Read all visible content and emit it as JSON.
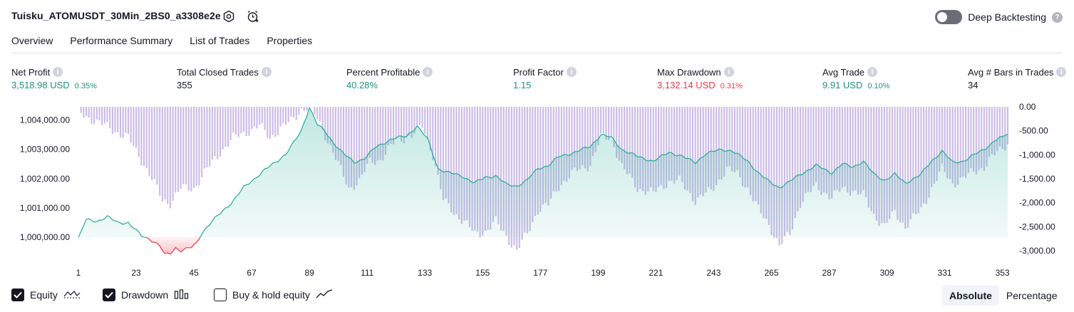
{
  "header": {
    "title": "Tuisku_ATOMUSDT_30Min_2BS0_a3308e2e",
    "settings_icon": "settings-icon",
    "alert_icon": "add-alert-icon",
    "deep_backtesting_label": "Deep Backtesting",
    "deep_backtesting_enabled": false,
    "help_glyph": "?"
  },
  "tabs": [
    {
      "label": "Overview",
      "active": true
    },
    {
      "label": "Performance Summary",
      "active": false
    },
    {
      "label": "List of Trades",
      "active": false
    },
    {
      "label": "Properties",
      "active": false
    }
  ],
  "metrics": [
    {
      "label": "Net Profit",
      "value": "3,518.98 USD",
      "pct": "0.35%",
      "tone": "positive"
    },
    {
      "label": "Total Closed Trades",
      "value": "355",
      "pct": "",
      "tone": "neutral"
    },
    {
      "label": "Percent Profitable",
      "value": "40.28%",
      "pct": "",
      "tone": "positive"
    },
    {
      "label": "Profit Factor",
      "value": "1.15",
      "pct": "",
      "tone": "positive"
    },
    {
      "label": "Max Drawdown",
      "value": "3,132.14 USD",
      "pct": "0.31%",
      "tone": "negative"
    },
    {
      "label": "Avg Trade",
      "value": "9.91 USD",
      "pct": "0.10%",
      "tone": "positive"
    },
    {
      "label": "Avg # Bars in Trades",
      "value": "34",
      "pct": "",
      "tone": "neutral"
    }
  ],
  "info_glyph": "i",
  "chart_data": {
    "type": "line",
    "x_ticks": [
      "1",
      "23",
      "45",
      "67",
      "89",
      "111",
      "133",
      "155",
      "177",
      "199",
      "221",
      "243",
      "265",
      "287",
      "309",
      "331",
      "353"
    ],
    "x_range": [
      1,
      355
    ],
    "equity_axis": {
      "ticks": [
        "1,004,000.00",
        "1,003,000.00",
        "1,002,000.00",
        "1,001,000.00",
        "1,000,000.00"
      ],
      "range": [
        999300,
        1004450
      ],
      "baseline": 1000000
    },
    "drawdown_axis": {
      "ticks": [
        "0.00",
        "-500.00",
        "-1,000.00",
        "-1,500.00",
        "-2,000.00",
        "-2,500.00",
        "-3,000.00"
      ],
      "range": [
        -3150,
        0
      ]
    },
    "equity_keypoints": [
      [
        1,
        1000000
      ],
      [
        4,
        1000600
      ],
      [
        8,
        1000550
      ],
      [
        12,
        1000700
      ],
      [
        16,
        1000500
      ],
      [
        20,
        1000500
      ],
      [
        25,
        1000050
      ],
      [
        28,
        999950
      ],
      [
        30,
        999850
      ],
      [
        32,
        999700
      ],
      [
        34,
        999400
      ],
      [
        36,
        999450
      ],
      [
        38,
        999650
      ],
      [
        40,
        999550
      ],
      [
        42,
        999600
      ],
      [
        44,
        999650
      ],
      [
        46,
        999800
      ],
      [
        48,
        1000150
      ],
      [
        52,
        1000550
      ],
      [
        56,
        1000900
      ],
      [
        60,
        1001250
      ],
      [
        64,
        1001700
      ],
      [
        68,
        1002000
      ],
      [
        72,
        1002300
      ],
      [
        76,
        1002550
      ],
      [
        80,
        1002850
      ],
      [
        84,
        1003350
      ],
      [
        86,
        1003650
      ],
      [
        89,
        1004450
      ],
      [
        92,
        1003850
      ],
      [
        95,
        1003600
      ],
      [
        98,
        1003250
      ],
      [
        102,
        1002850
      ],
      [
        106,
        1002550
      ],
      [
        110,
        1002700
      ],
      [
        114,
        1003050
      ],
      [
        120,
        1003350
      ],
      [
        126,
        1003450
      ],
      [
        130,
        1003800
      ],
      [
        134,
        1003350
      ],
      [
        138,
        1002350
      ],
      [
        142,
        1002200
      ],
      [
        147,
        1002100
      ],
      [
        152,
        1001850
      ],
      [
        156,
        1002050
      ],
      [
        160,
        1002100
      ],
      [
        164,
        1001800
      ],
      [
        168,
        1001750
      ],
      [
        172,
        1001950
      ],
      [
        176,
        1002350
      ],
      [
        180,
        1002450
      ],
      [
        184,
        1002750
      ],
      [
        190,
        1002900
      ],
      [
        196,
        1003100
      ],
      [
        200,
        1003500
      ],
      [
        204,
        1003400
      ],
      [
        208,
        1003000
      ],
      [
        214,
        1002750
      ],
      [
        220,
        1002600
      ],
      [
        226,
        1002900
      ],
      [
        230,
        1002800
      ],
      [
        236,
        1002550
      ],
      [
        240,
        1002850
      ],
      [
        246,
        1003000
      ],
      [
        250,
        1002950
      ],
      [
        256,
        1002600
      ],
      [
        260,
        1002200
      ],
      [
        264,
        1001900
      ],
      [
        268,
        1001700
      ],
      [
        272,
        1001900
      ],
      [
        276,
        1002150
      ],
      [
        282,
        1002450
      ],
      [
        288,
        1002200
      ],
      [
        292,
        1002500
      ],
      [
        296,
        1002400
      ],
      [
        300,
        1002600
      ],
      [
        304,
        1002150
      ],
      [
        308,
        1001950
      ],
      [
        312,
        1002150
      ],
      [
        316,
        1001850
      ],
      [
        322,
        1002150
      ],
      [
        326,
        1002600
      ],
      [
        330,
        1002950
      ],
      [
        334,
        1002550
      ],
      [
        338,
        1002600
      ],
      [
        342,
        1002800
      ],
      [
        346,
        1003000
      ],
      [
        350,
        1003300
      ],
      [
        355,
        1003520
      ]
    ],
    "drawdown_keypoints": [
      [
        1,
        -120
      ],
      [
        12,
        -420
      ],
      [
        20,
        -650
      ],
      [
        26,
        -1200
      ],
      [
        30,
        -1600
      ],
      [
        33,
        -1950
      ],
      [
        36,
        -2000
      ],
      [
        40,
        -1700
      ],
      [
        45,
        -1700
      ],
      [
        50,
        -1300
      ],
      [
        55,
        -950
      ],
      [
        60,
        -650
      ],
      [
        66,
        -500
      ],
      [
        70,
        -400
      ],
      [
        74,
        -650
      ],
      [
        78,
        -450
      ],
      [
        82,
        -300
      ],
      [
        86,
        -50
      ],
      [
        89,
        0
      ],
      [
        92,
        -250
      ],
      [
        96,
        -700
      ],
      [
        100,
        -1200
      ],
      [
        104,
        -1700
      ],
      [
        108,
        -1550
      ],
      [
        112,
        -1150
      ],
      [
        116,
        -1100
      ],
      [
        122,
        -700
      ],
      [
        128,
        -600
      ],
      [
        132,
        -400
      ],
      [
        136,
        -1000
      ],
      [
        140,
        -1950
      ],
      [
        144,
        -2200
      ],
      [
        148,
        -2400
      ],
      [
        152,
        -2650
      ],
      [
        156,
        -2600
      ],
      [
        160,
        -2400
      ],
      [
        164,
        -2700
      ],
      [
        168,
        -3000
      ],
      [
        172,
        -2650
      ],
      [
        176,
        -2150
      ],
      [
        180,
        -2050
      ],
      [
        184,
        -1650
      ],
      [
        190,
        -1350
      ],
      [
        196,
        -1200
      ],
      [
        200,
        -650
      ],
      [
        204,
        -650
      ],
      [
        208,
        -1250
      ],
      [
        214,
        -1700
      ],
      [
        220,
        -1800
      ],
      [
        226,
        -1550
      ],
      [
        230,
        -1550
      ],
      [
        236,
        -1950
      ],
      [
        242,
        -1750
      ],
      [
        248,
        -1300
      ],
      [
        252,
        -1400
      ],
      [
        256,
        -1700
      ],
      [
        260,
        -2150
      ],
      [
        264,
        -2450
      ],
      [
        268,
        -2900
      ],
      [
        272,
        -2650
      ],
      [
        276,
        -2000
      ],
      [
        282,
        -1650
      ],
      [
        288,
        -1900
      ],
      [
        292,
        -1700
      ],
      [
        296,
        -1750
      ],
      [
        300,
        -1850
      ],
      [
        304,
        -2250
      ],
      [
        308,
        -2500
      ],
      [
        312,
        -2200
      ],
      [
        316,
        -2500
      ],
      [
        322,
        -2150
      ],
      [
        326,
        -1700
      ],
      [
        330,
        -1300
      ],
      [
        334,
        -1600
      ],
      [
        338,
        -1500
      ],
      [
        342,
        -1350
      ],
      [
        346,
        -1250
      ],
      [
        350,
        -1000
      ],
      [
        355,
        -750
      ]
    ],
    "colors": {
      "equity_line": "#22ab94",
      "equity_fill": "#22ab94",
      "below_line": "#f23645",
      "below_fill": "#f7525f",
      "drawdown": "#b39ddb"
    },
    "grid": false
  },
  "legend": {
    "equity": {
      "label": "Equity",
      "checked": true,
      "icon": "equity-line-icon"
    },
    "drawdown": {
      "label": "Drawdown",
      "checked": true,
      "icon": "drawdown-bars-icon"
    },
    "buyhold": {
      "label": "Buy & hold equity",
      "checked": false,
      "icon": "buy-hold-line-icon"
    }
  },
  "view_mode": {
    "absolute": "Absolute",
    "percentage": "Percentage",
    "selected": "absolute"
  }
}
